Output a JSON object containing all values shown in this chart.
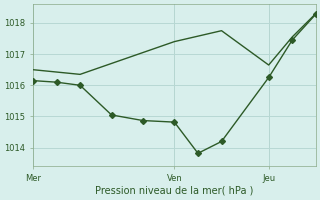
{
  "background_color": "#d8efec",
  "grid_color": "#b8d8d4",
  "line_color": "#2d5a27",
  "xlabel": "Pression niveau de la mer( hPa )",
  "ylim": [
    1013.4,
    1018.6
  ],
  "yticks": [
    1014,
    1015,
    1016,
    1017,
    1018
  ],
  "xlim": [
    0,
    18
  ],
  "xtick_positions": [
    0,
    9,
    15
  ],
  "xtick_labels": [
    "Mer",
    "Ven",
    "Jeu"
  ],
  "vline_positions": [
    0,
    9,
    15
  ],
  "line1_x": [
    0,
    3,
    9,
    12,
    15,
    16.5,
    18
  ],
  "line1_y": [
    1016.5,
    1016.35,
    1017.4,
    1017.75,
    1016.65,
    1017.55,
    1018.3
  ],
  "line2_x": [
    0,
    1.5,
    3,
    5,
    7,
    9,
    10.5,
    12,
    15,
    16.5,
    18
  ],
  "line2_y": [
    1016.15,
    1016.1,
    1016.0,
    1015.05,
    1014.87,
    1014.82,
    1013.82,
    1014.2,
    1016.25,
    1017.45,
    1018.28
  ],
  "marker": "D",
  "markersize": 3,
  "linewidth": 1.0,
  "tick_fontsize": 6,
  "xlabel_fontsize": 7,
  "tick_color": "#2d5a27",
  "spine_color": "#8aaa88"
}
